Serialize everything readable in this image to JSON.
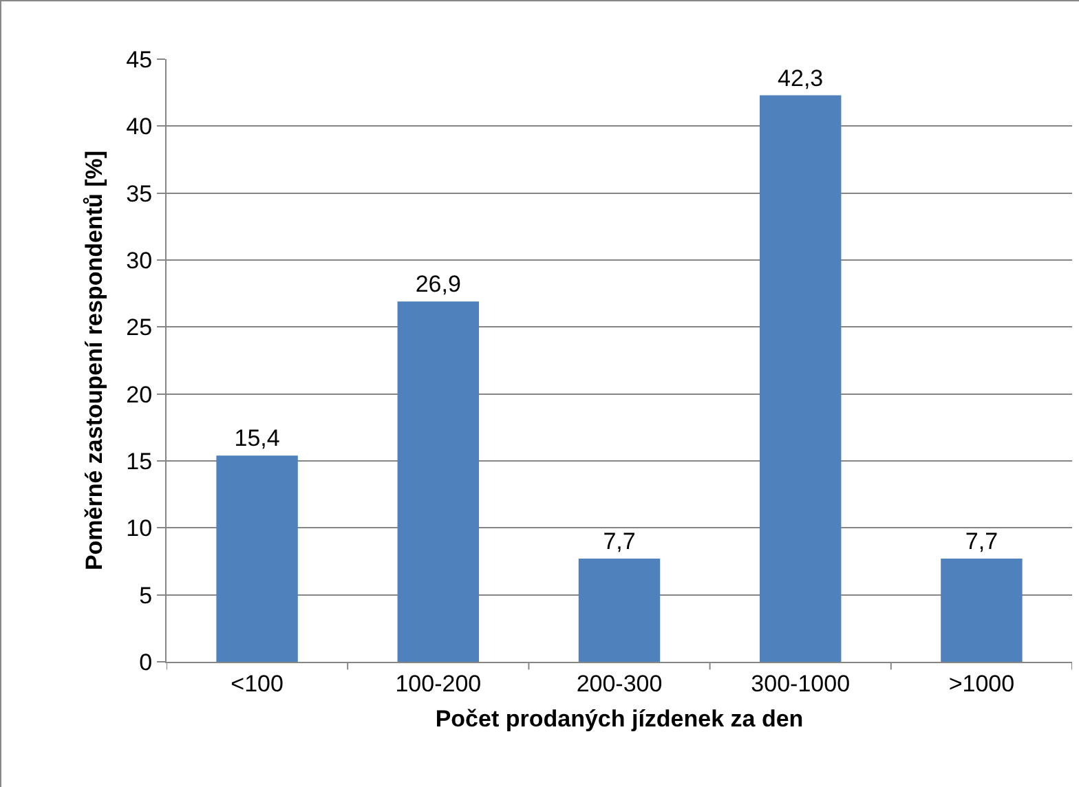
{
  "chart_data": {
    "type": "bar",
    "xlabel": "Počet prodaných jízdenek za den",
    "ylabel": "Poměrné zastoupení respondentů [%]",
    "categories": [
      "<100",
      "100-200",
      "200-300",
      "300-1000",
      ">1000"
    ],
    "values": [
      15.4,
      26.9,
      7.7,
      42.3,
      7.7
    ],
    "value_labels": [
      "15,4",
      "26,9",
      "7,7",
      "42,3",
      "7,7"
    ],
    "color": "#4f81bd",
    "ylim": [
      0,
      45
    ],
    "yticks": [
      0,
      5,
      10,
      15,
      20,
      25,
      30,
      35,
      40,
      45
    ],
    "grid": "y"
  }
}
